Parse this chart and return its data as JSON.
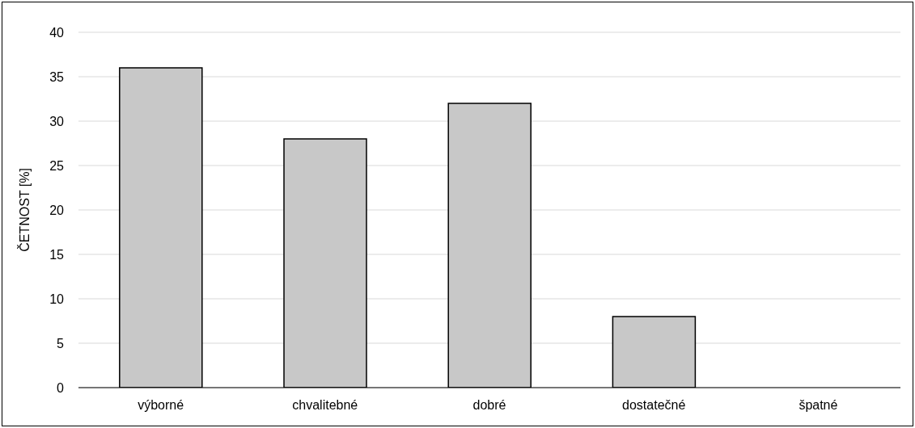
{
  "chart_data": {
    "type": "bar",
    "ylabel": "ČETNOST [%]",
    "categories": [
      "výborné",
      "chvalitebné",
      "dobré",
      "dostatečné",
      "špatné"
    ],
    "values": [
      36,
      28,
      32,
      8,
      0
    ],
    "color": "#c8c8c8",
    "ylim": [
      0,
      40
    ],
    "yticks": [
      0,
      5,
      10,
      15,
      20,
      25,
      30,
      35,
      40
    ],
    "grid": "y"
  }
}
